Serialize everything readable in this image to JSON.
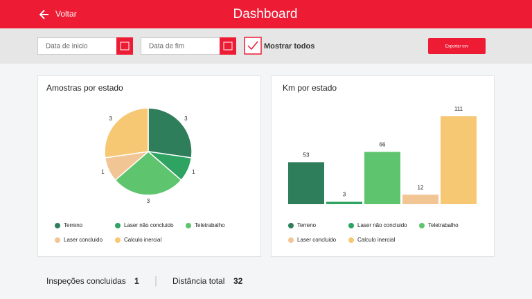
{
  "header": {
    "back": "Voltar",
    "title": "Dashboard"
  },
  "filters": {
    "start": "Data de inicio",
    "end": "Data de fim",
    "show_all": "Mostrar todos",
    "export": "Exportar csv"
  },
  "chart_data": [
    {
      "type": "pie",
      "title": "Amostras por estado",
      "categories": [
        "Terreno",
        "Laser não concluido",
        "Teletrabalho",
        "Laser concluido",
        "Calculo inercial"
      ],
      "values": [
        3,
        1,
        3,
        1,
        3
      ],
      "colors": [
        "#2e7d5b",
        "#2ea362",
        "#5ec46e",
        "#f2c594",
        "#f7c873"
      ]
    },
    {
      "type": "bar",
      "title": "Km por estado",
      "categories": [
        "Terreno",
        "Laser não concluido",
        "Teletrabalho",
        "Laser concluido",
        "Calculo inercial"
      ],
      "values": [
        53,
        3,
        66,
        12,
        111
      ],
      "colors": [
        "#2e7d5b",
        "#2ea362",
        "#5ec46e",
        "#f2c594",
        "#f7c873"
      ]
    }
  ],
  "summary": {
    "inspections_label": "Inspeções concluidas",
    "inspections": 1,
    "distance_label": "Distância total",
    "distance": 32
  }
}
